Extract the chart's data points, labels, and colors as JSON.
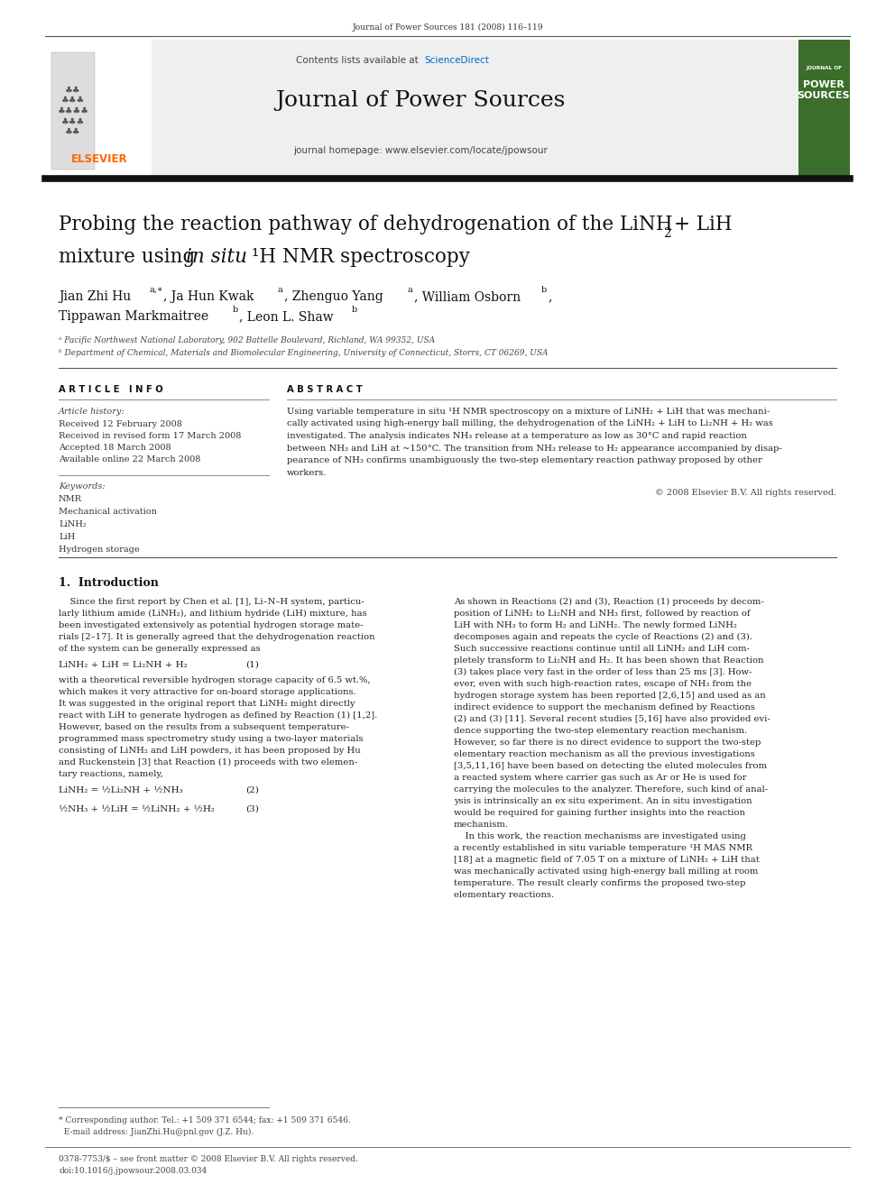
{
  "page_bg": "#ffffff",
  "top_journal_ref": "Journal of Power Sources 181 (2008) 116–119",
  "header_sciencedirect_color": "#0066cc",
  "header_journal_title": "Journal of Power Sources",
  "header_url": "journal homepage: www.elsevier.com/locate/jpowsour",
  "affil_a": "ᵃ Pacific Northwest National Laboratory, 902 Battelle Boulevard, Richland, WA 99352, USA",
  "affil_b": "ᵇ Department of Chemical, Materials and Biomolecular Engineering, University of Connecticut, Storrs, CT 06269, USA",
  "article_history_label": "Article history:",
  "article_history": "Received 12 February 2008\nReceived in revised form 17 March 2008\nAccepted 18 March 2008\nAvailable online 22 March 2008",
  "keywords_label": "Keywords:",
  "keywords": "NMR\nMechanical activation\nLiNH₂\nLiH\nHydrogen storage",
  "copyright": "© 2008 Elsevier B.V. All rights reserved.",
  "elsevier_orange": "#ff6600",
  "journal_cover_bg": "#3a6e2a",
  "abstract_lines": [
    "Using variable temperature in situ ¹H NMR spectroscopy on a mixture of LiNH₂ + LiH that was mechani-",
    "cally activated using high-energy ball milling, the dehydrogenation of the LiNH₂ + LiH to Li₂NH + H₂ was",
    "investigated. The analysis indicates NH₃ release at a temperature as low as 30°C and rapid reaction",
    "between NH₃ and LiH at ~150°C. The transition from NH₃ release to H₂ appearance accompanied by disap-",
    "pearance of NH₃ confirms unambiguously the two-step elementary reaction pathway proposed by other",
    "workers."
  ],
  "col1_text1": [
    "    Since the first report by Chen et al. [1], Li–N–H system, particu-",
    "larly lithium amide (LiNH₂), and lithium hydride (LiH) mixture, has",
    "been investigated extensively as potential hydrogen storage mate-",
    "rials [2–17]. It is generally agreed that the dehydrogenation reaction",
    "of the system can be generally expressed as"
  ],
  "col1_text2": [
    "with a theoretical reversible hydrogen storage capacity of 6.5 wt.%,",
    "which makes it very attractive for on-board storage applications.",
    "It was suggested in the original report that LiNH₂ might directly",
    "react with LiH to generate hydrogen as defined by Reaction (1) [1,2].",
    "However, based on the results from a subsequent temperature-",
    "programmed mass spectrometry study using a two-layer materials",
    "consisting of LiNH₂ and LiH powders, it has been proposed by Hu",
    "and Ruckenstein [3] that Reaction (1) proceeds with two elemen-",
    "tary reactions, namely,"
  ],
  "col2_text": [
    "As shown in Reactions (2) and (3), Reaction (1) proceeds by decom-",
    "position of LiNH₂ to Li₂NH and NH₃ first, followed by reaction of",
    "LiH with NH₃ to form H₂ and LiNH₂. The newly formed LiNH₂",
    "decomposes again and repeats the cycle of Reactions (2) and (3).",
    "Such successive reactions continue until all LiNH₂ and LiH com-",
    "pletely transform to Li₂NH and H₂. It has been shown that Reaction",
    "(3) takes place very fast in the order of less than 25 ms [3]. How-",
    "ever, even with such high-reaction rates, escape of NH₃ from the",
    "hydrogen storage system has been reported [2,6,15] and used as an",
    "indirect evidence to support the mechanism defined by Reactions",
    "(2) and (3) [11]. Several recent studies [5,16] have also provided evi-",
    "dence supporting the two-step elementary reaction mechanism.",
    "However, so far there is no direct evidence to support the two-step",
    "elementary reaction mechanism as all the previous investigations",
    "[3,5,11,16] have been based on detecting the eluted molecules from",
    "a reacted system where carrier gas such as Ar or He is used for",
    "carrying the molecules to the analyzer. Therefore, such kind of anal-",
    "ysis is intrinsically an ex situ experiment. An in situ investigation",
    "would be required for gaining further insights into the reaction",
    "mechanism.",
    "    In this work, the reaction mechanisms are investigated using",
    "a recently established in situ variable temperature ¹H MAS NMR",
    "[18] at a magnetic field of 7.05 T on a mixture of LiNH₂ + LiH that",
    "was mechanically activated using high-energy ball milling at room",
    "temperature. The result clearly confirms the proposed two-step",
    "elementary reactions."
  ]
}
